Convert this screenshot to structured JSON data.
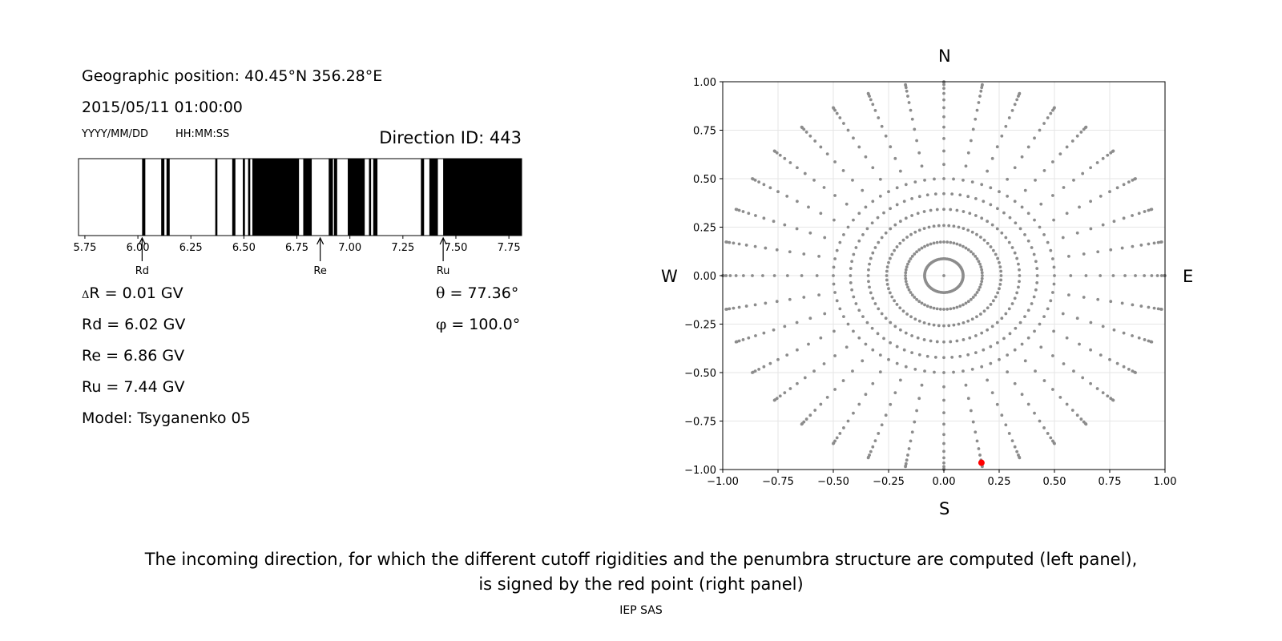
{
  "left_panel": {
    "geo_position": "Geographic position: 40.45°N 356.28°E",
    "datetime": "2015/05/11 01:00:00",
    "date_format": "YYYY/MM/DD",
    "time_format": "HH:MM:SS",
    "direction_id": "Direction ID: 443",
    "delta_r": {
      "symbol": "Δ",
      "text": "R = 0.01 GV"
    },
    "rd": "Rd = 6.02 GV",
    "re": "Re = 6.86 GV",
    "ru": "Ru = 7.44 GV",
    "model": "Model: Tsyganenko 05",
    "theta": {
      "symbol": "θ",
      "text": " = 77.36°"
    },
    "phi": {
      "symbol": "φ",
      "text": " = 100.0°"
    }
  },
  "right_panel": {
    "north": "N",
    "south": "S",
    "west": "W",
    "east": "E"
  },
  "caption": {
    "line1": "The incoming direction, for which the different cutoff rigidities and the penumbra structure are computed (left panel),",
    "line2": "is signed by the red point (right panel)",
    "credit": "IEP SAS"
  },
  "chart_data": [
    {
      "type": "penumbra-barcode",
      "xlim": [
        5.72,
        7.81
      ],
      "xticks": [
        "5.75",
        "6.00",
        "6.25",
        "6.50",
        "6.75",
        "7.00",
        "7.25",
        "7.50",
        "7.75"
      ],
      "forbidden_bands": [
        [
          6.02,
          6.035
        ],
        [
          6.11,
          6.125
        ],
        [
          6.135,
          6.15
        ],
        [
          6.365,
          6.375
        ],
        [
          6.445,
          6.46
        ],
        [
          6.495,
          6.505
        ],
        [
          6.52,
          6.53
        ],
        [
          6.54,
          6.76
        ],
        [
          6.78,
          6.82
        ],
        [
          6.9,
          6.92
        ],
        [
          6.925,
          6.94
        ],
        [
          6.99,
          7.07
        ],
        [
          7.09,
          7.1
        ],
        [
          7.11,
          7.13
        ],
        [
          7.335,
          7.35
        ],
        [
          7.375,
          7.415
        ],
        [
          7.44,
          7.81
        ]
      ],
      "markers": [
        {
          "label": "Rd",
          "value": 6.02
        },
        {
          "label": "Re",
          "value": 6.86
        },
        {
          "label": "Ru",
          "value": 7.44
        }
      ],
      "colors": {
        "band": "#000000",
        "background": "#ffffff"
      }
    },
    {
      "type": "scatter",
      "xlim": [
        -1.0,
        1.0
      ],
      "ylim": [
        -1.0,
        1.0
      ],
      "ticks": [
        "-1.00",
        "-0.75",
        "-0.50",
        "-0.25",
        "0.00",
        "0.25",
        "0.50",
        "0.75",
        "1.00"
      ],
      "grid": true,
      "series": [
        {
          "pattern": "polar-grid",
          "center": [
            0,
            0
          ],
          "azimuth_step_deg": 10,
          "radius_step_deg": 5,
          "radii_count": 18,
          "mirror_projection": "sin(zenith)",
          "color": "#8c8c8c"
        }
      ],
      "highlight": {
        "x": 0.17,
        "y": -0.965,
        "color": "#ff0000"
      }
    }
  ]
}
